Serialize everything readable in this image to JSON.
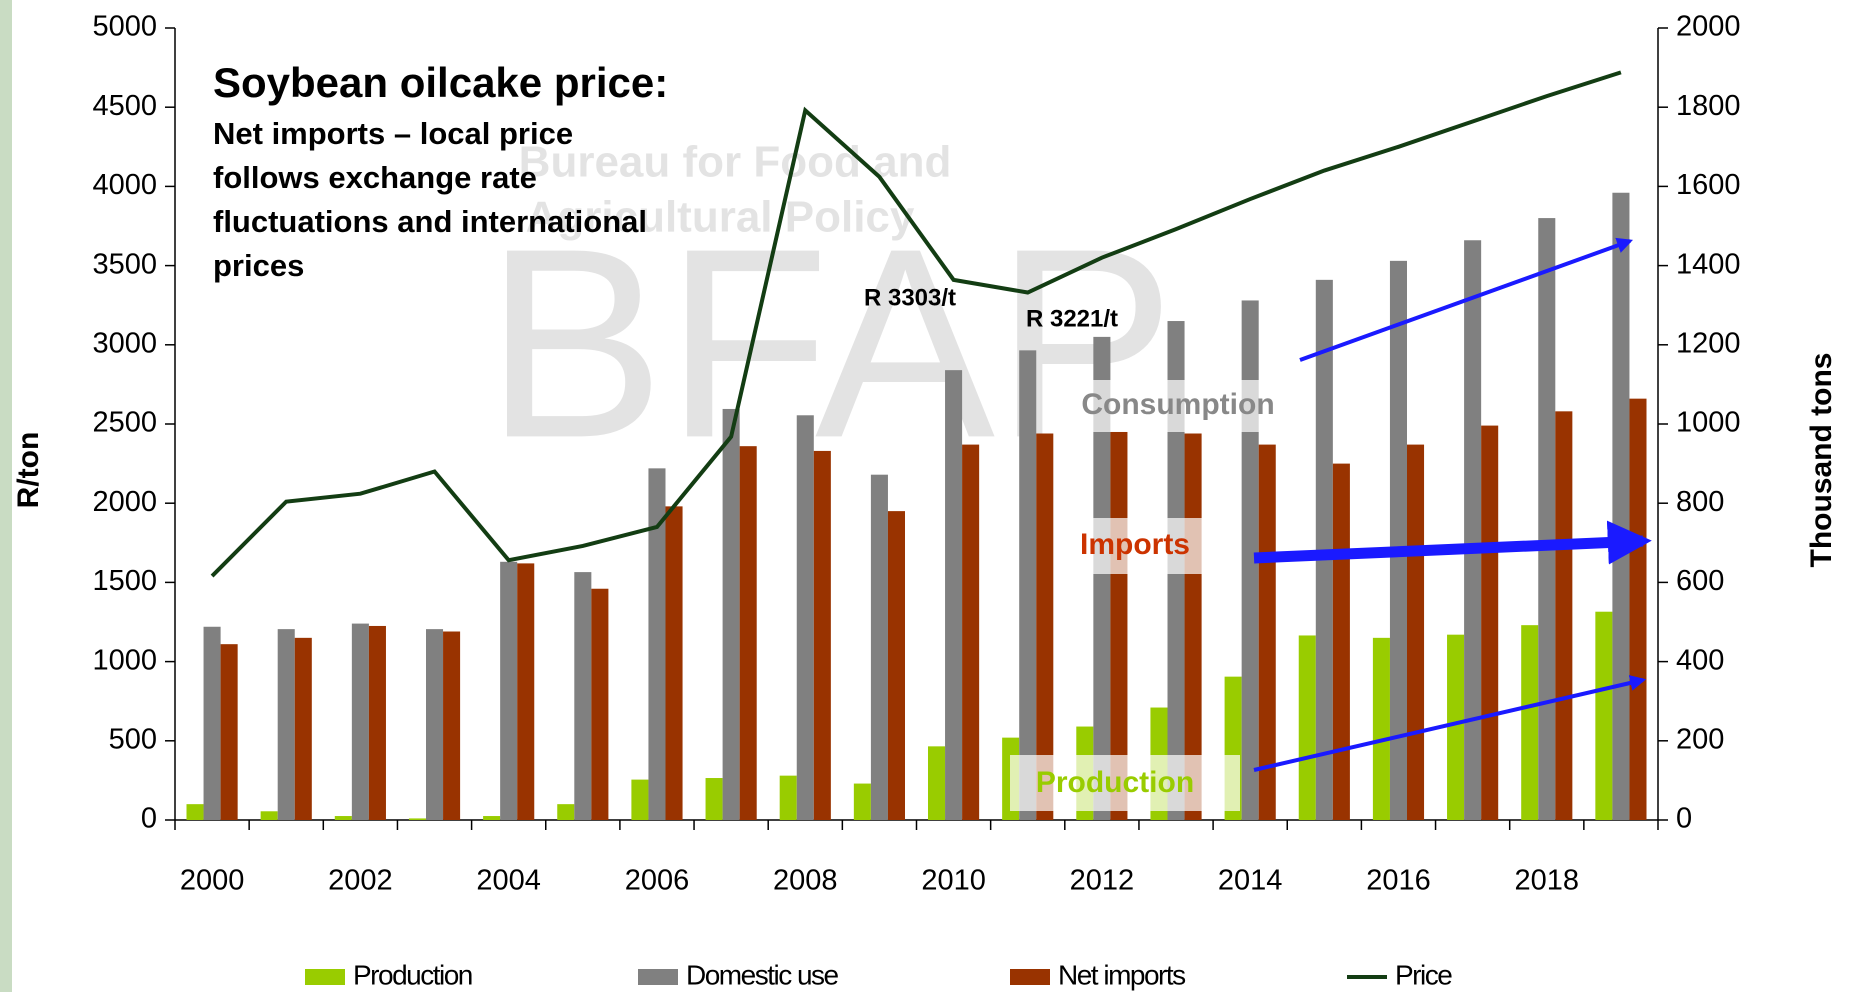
{
  "chart_data": {
    "type": "bar",
    "title": "Soybean oilcake price:",
    "subtitle": [
      "Net imports – local price",
      "follows exchange rate",
      "fluctuations and international",
      "prices"
    ],
    "watermark": [
      "Bureau for Food and",
      "Agricultural Policy",
      "BFAP"
    ],
    "y_label": "R/ton",
    "y2_label": "Thousand tons",
    "categories": [
      "2000",
      null,
      "2002",
      null,
      "2004",
      null,
      "2006",
      null,
      "2008",
      null,
      "2010",
      null,
      "2012",
      null,
      "2014",
      null,
      "2016",
      null,
      "2018",
      null
    ],
    "series": [
      {
        "name": "Production",
        "type": "bar",
        "axis": "y2",
        "color": "#99cc00",
        "values": [
          40,
          22,
          10,
          4,
          10,
          40,
          102,
          106,
          112,
          92,
          186,
          208,
          236,
          284,
          362,
          466,
          460,
          468,
          492,
          526
        ]
      },
      {
        "name": "Domestic use",
        "type": "bar",
        "axis": "y2",
        "color": "#808080",
        "values": [
          488,
          482,
          496,
          482,
          652,
          626,
          888,
          1038,
          1022,
          872,
          1136,
          1186,
          1220,
          1260,
          1312,
          1364,
          1412,
          1464,
          1520,
          1584
        ]
      },
      {
        "name": "Net imports",
        "type": "bar",
        "axis": "y2",
        "color": "#993300",
        "values": [
          444,
          460,
          490,
          476,
          648,
          584,
          792,
          944,
          932,
          780,
          948,
          976,
          980,
          976,
          948,
          900,
          948,
          996,
          1032,
          1064
        ]
      },
      {
        "name": "Price",
        "type": "line",
        "axis": "y",
        "color": "#133d13",
        "values": [
          1540,
          2010,
          2060,
          2200,
          1640,
          1730,
          1850,
          2420,
          4480,
          4060,
          3410,
          3330,
          3550,
          3730,
          3920,
          4100,
          4250,
          4410,
          4570,
          4720
        ]
      }
    ],
    "annotations": [
      "R 3303/t",
      "R 3221/t",
      "Consumption",
      "Imports",
      "Production"
    ],
    "ylim": [
      0,
      5000
    ],
    "yticks": [
      0,
      500,
      1000,
      1500,
      2000,
      2500,
      3000,
      3500,
      4000,
      4500,
      5000
    ],
    "y2lim": [
      0,
      2000
    ],
    "y2ticks": [
      0,
      200,
      400,
      600,
      800,
      1000,
      1200,
      1400,
      1600,
      1800,
      2000
    ],
    "grid": false,
    "legend": "bottom"
  }
}
